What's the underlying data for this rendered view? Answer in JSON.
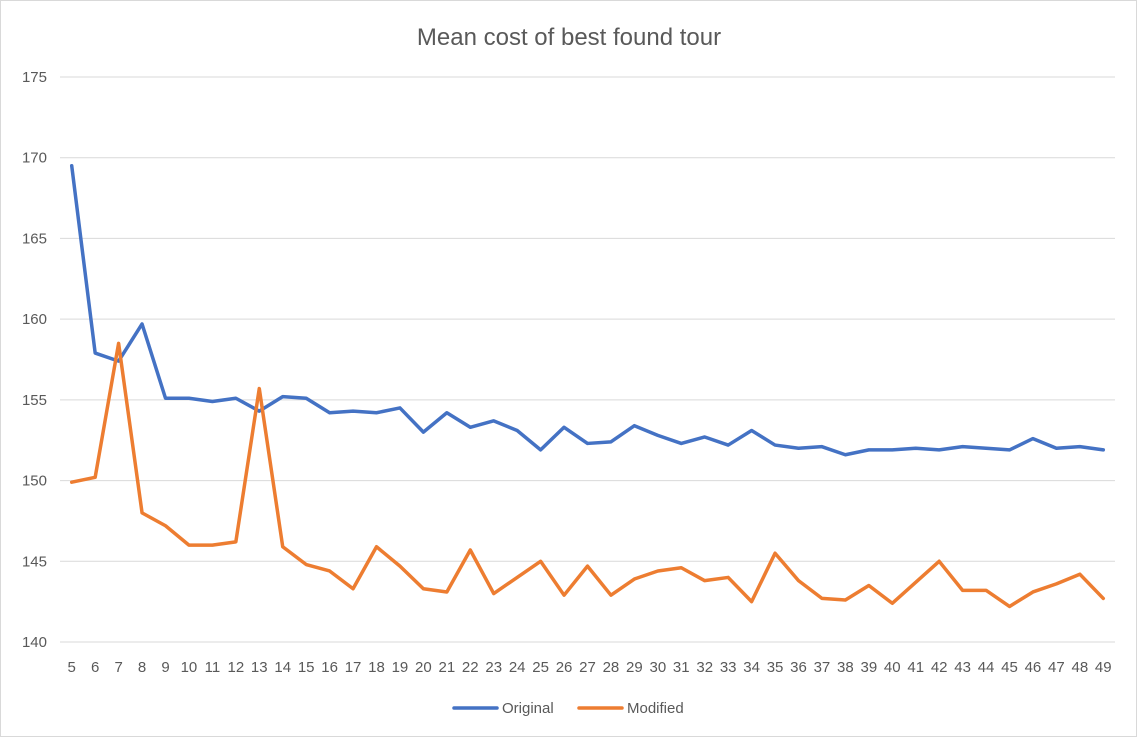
{
  "chart_data": {
    "type": "line",
    "title": "Mean cost of best found tour",
    "xlabel": "",
    "ylabel": "",
    "ylim": [
      140,
      175
    ],
    "yticks": [
      140,
      145,
      150,
      155,
      160,
      165,
      170,
      175
    ],
    "grid": true,
    "legend_position": "bottom",
    "x": [
      5,
      6,
      7,
      8,
      9,
      10,
      11,
      12,
      13,
      14,
      15,
      16,
      17,
      18,
      19,
      20,
      21,
      22,
      23,
      24,
      25,
      26,
      27,
      28,
      29,
      30,
      31,
      32,
      33,
      34,
      35,
      36,
      37,
      38,
      39,
      40,
      41,
      42,
      43,
      44,
      45,
      46,
      47,
      48,
      49
    ],
    "series": [
      {
        "name": "Original",
        "color": "#4472c4",
        "values": [
          169.5,
          157.9,
          157.4,
          159.7,
          155.1,
          155.1,
          154.9,
          155.1,
          154.3,
          155.2,
          155.1,
          154.2,
          154.3,
          154.2,
          154.5,
          153.0,
          154.2,
          153.3,
          153.7,
          153.1,
          151.9,
          153.3,
          152.3,
          152.4,
          153.4,
          152.8,
          152.3,
          152.7,
          152.2,
          153.1,
          152.2,
          152.0,
          152.1,
          151.6,
          151.9,
          151.9,
          152.0,
          151.9,
          152.1,
          152.0,
          151.9,
          152.6,
          152.0,
          152.1,
          151.9
        ]
      },
      {
        "name": "Modified",
        "color": "#ed7d31",
        "values": [
          149.9,
          150.2,
          158.5,
          148.0,
          147.2,
          146.0,
          146.0,
          146.2,
          155.7,
          145.9,
          144.8,
          144.4,
          143.3,
          145.9,
          144.7,
          143.3,
          143.1,
          145.7,
          143.0,
          144.0,
          145.0,
          142.9,
          144.7,
          142.9,
          143.9,
          144.4,
          144.6,
          143.8,
          144.0,
          142.5,
          145.5,
          143.8,
          142.7,
          142.6,
          143.5,
          142.4,
          143.7,
          145.0,
          143.2,
          143.2,
          142.2,
          143.1,
          143.6,
          144.2,
          142.7
        ]
      }
    ]
  }
}
